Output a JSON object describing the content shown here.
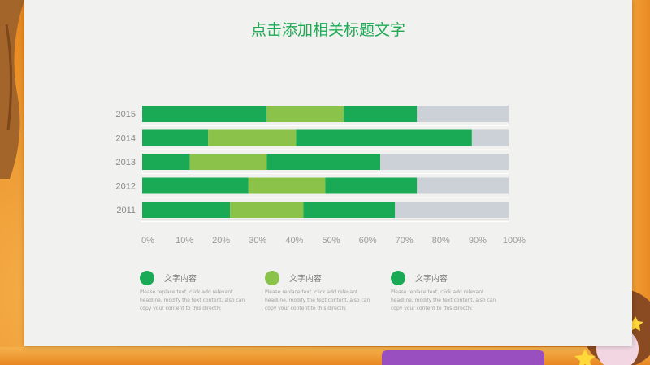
{
  "title": "点击添加相关标题文字",
  "colors": {
    "dark_green": "#1aaa55",
    "light_green": "#8bc34a",
    "gray": "#ccd1d7",
    "title": "#1eaa55"
  },
  "chart_data": {
    "type": "bar",
    "orientation": "horizontal",
    "stacked": true,
    "title": "点击添加相关标题文字",
    "categories": [
      "2015",
      "2014",
      "2013",
      "2012",
      "2011"
    ],
    "xlim": [
      0,
      100
    ],
    "x_ticks": [
      "0%",
      "10%",
      "20%",
      "30%",
      "40%",
      "50%",
      "60%",
      "70%",
      "80%",
      "90%",
      "100%"
    ],
    "segments": [
      [
        34,
        21,
        20,
        25
      ],
      [
        18,
        24,
        48,
        10
      ],
      [
        13,
        21,
        31,
        35
      ],
      [
        29,
        21,
        25,
        25
      ],
      [
        24,
        20,
        25,
        31
      ]
    ],
    "grid": false
  },
  "legend": [
    {
      "label": "文字内容",
      "color": "#1aaa55",
      "desc": "Please replace text, click add relevant headline, modify the text content, also can copy your content to this directly."
    },
    {
      "label": "文字内容",
      "color": "#8bc34a",
      "desc": "Please replace text, click add relevant headline, modify the text content, also can copy your content to this directly."
    },
    {
      "label": "文字内容",
      "color": "#1aaa55",
      "desc": "Please replace text, click add relevant headline, modify the text content, also can copy your content to this directly."
    }
  ]
}
